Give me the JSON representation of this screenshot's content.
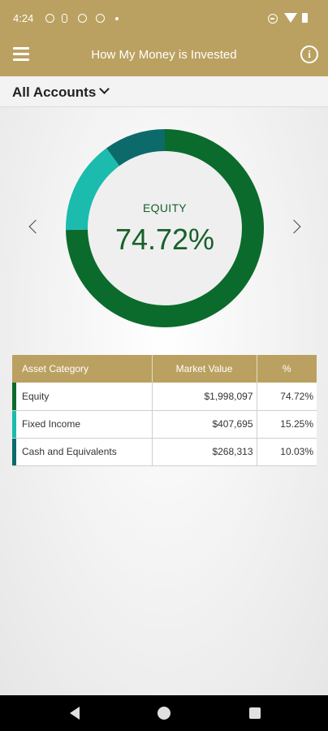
{
  "status_bar": {
    "time": "4:24"
  },
  "app_bar": {
    "title": "How My Money is Invested",
    "info_symbol": "i"
  },
  "accounts": {
    "label": "All Accounts"
  },
  "donut": {
    "selected_label": "EQUITY",
    "selected_value": "74.72%"
  },
  "table": {
    "headers": {
      "category": "Asset Category",
      "market_value": "Market Value",
      "percent": "%"
    },
    "rows": [
      {
        "category": "Equity",
        "market_value": "$1,998,097",
        "percent": "74.72%",
        "color": "#0b6b2c"
      },
      {
        "category": "Fixed Income",
        "market_value": "$407,695",
        "percent": "15.25%",
        "color": "#1bbcae"
      },
      {
        "category": "Cash and Equivalents",
        "market_value": "$268,313",
        "percent": "10.03%",
        "color": "#0d6a6a"
      }
    ]
  },
  "chart_data": {
    "type": "pie",
    "categories": [
      "Equity",
      "Fixed Income",
      "Cash and Equivalents"
    ],
    "values": [
      74.72,
      15.25,
      10.03
    ],
    "colors": [
      "#0b6b2c",
      "#1bbcae",
      "#0d6a6a"
    ]
  },
  "colors": {
    "gold": "#bba161",
    "equity_text": "#17602a"
  },
  "icons": {
    "menu": "menu-icon",
    "info": "info-icon",
    "chevron": "chevron-down-icon",
    "prev": "chevron-left-icon",
    "next": "chevron-right-icon"
  }
}
